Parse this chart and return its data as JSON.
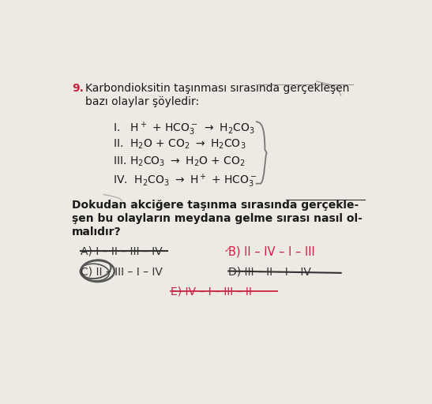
{
  "background_color": "#ede9e3",
  "question_number": "9.",
  "question_number_color": "#cc2244",
  "title_line1": "Karbondioksitin taşınması sırasında gerçekleşen",
  "title_line2": "bazı olaylar şöyledir:",
  "reaction1": "I.   H$^+$ + HCO$_3^-$ $\\rightarrow$ H$_2$CO$_3$",
  "reaction2": "II.  H$_2$O + CO$_2$ $\\rightarrow$ H$_2$CO$_3$",
  "reaction3": "III. H$_2$CO$_3$ $\\rightarrow$ H$_2$O + CO$_2$",
  "reaction4": "IV.  H$_2$CO$_3$ $\\rightarrow$ H$^+$ + HCO$_3^-$",
  "bold_q1": "Dokudan akciğere taşınma sırasında gerçekle-",
  "bold_q2": "şen bu olayların meydana gelme sırası nasıl ol-",
  "bold_q3": "malıdır?",
  "opt_A_text": "A) I – II – III – IV",
  "opt_B_text": "B) II – IV – I – III",
  "opt_C_text": "C) II – III – I – IV",
  "opt_D_text": "D) III – II – I – IV",
  "opt_E_text": "E) IV – I – III – II",
  "opt_A_color": "#333333",
  "opt_B_color": "#cc2244",
  "opt_C_color": "#333333",
  "opt_D_color": "#333333",
  "opt_E_color": "#cc2244",
  "text_color": "#1a1a1a",
  "gray_color": "#555555"
}
